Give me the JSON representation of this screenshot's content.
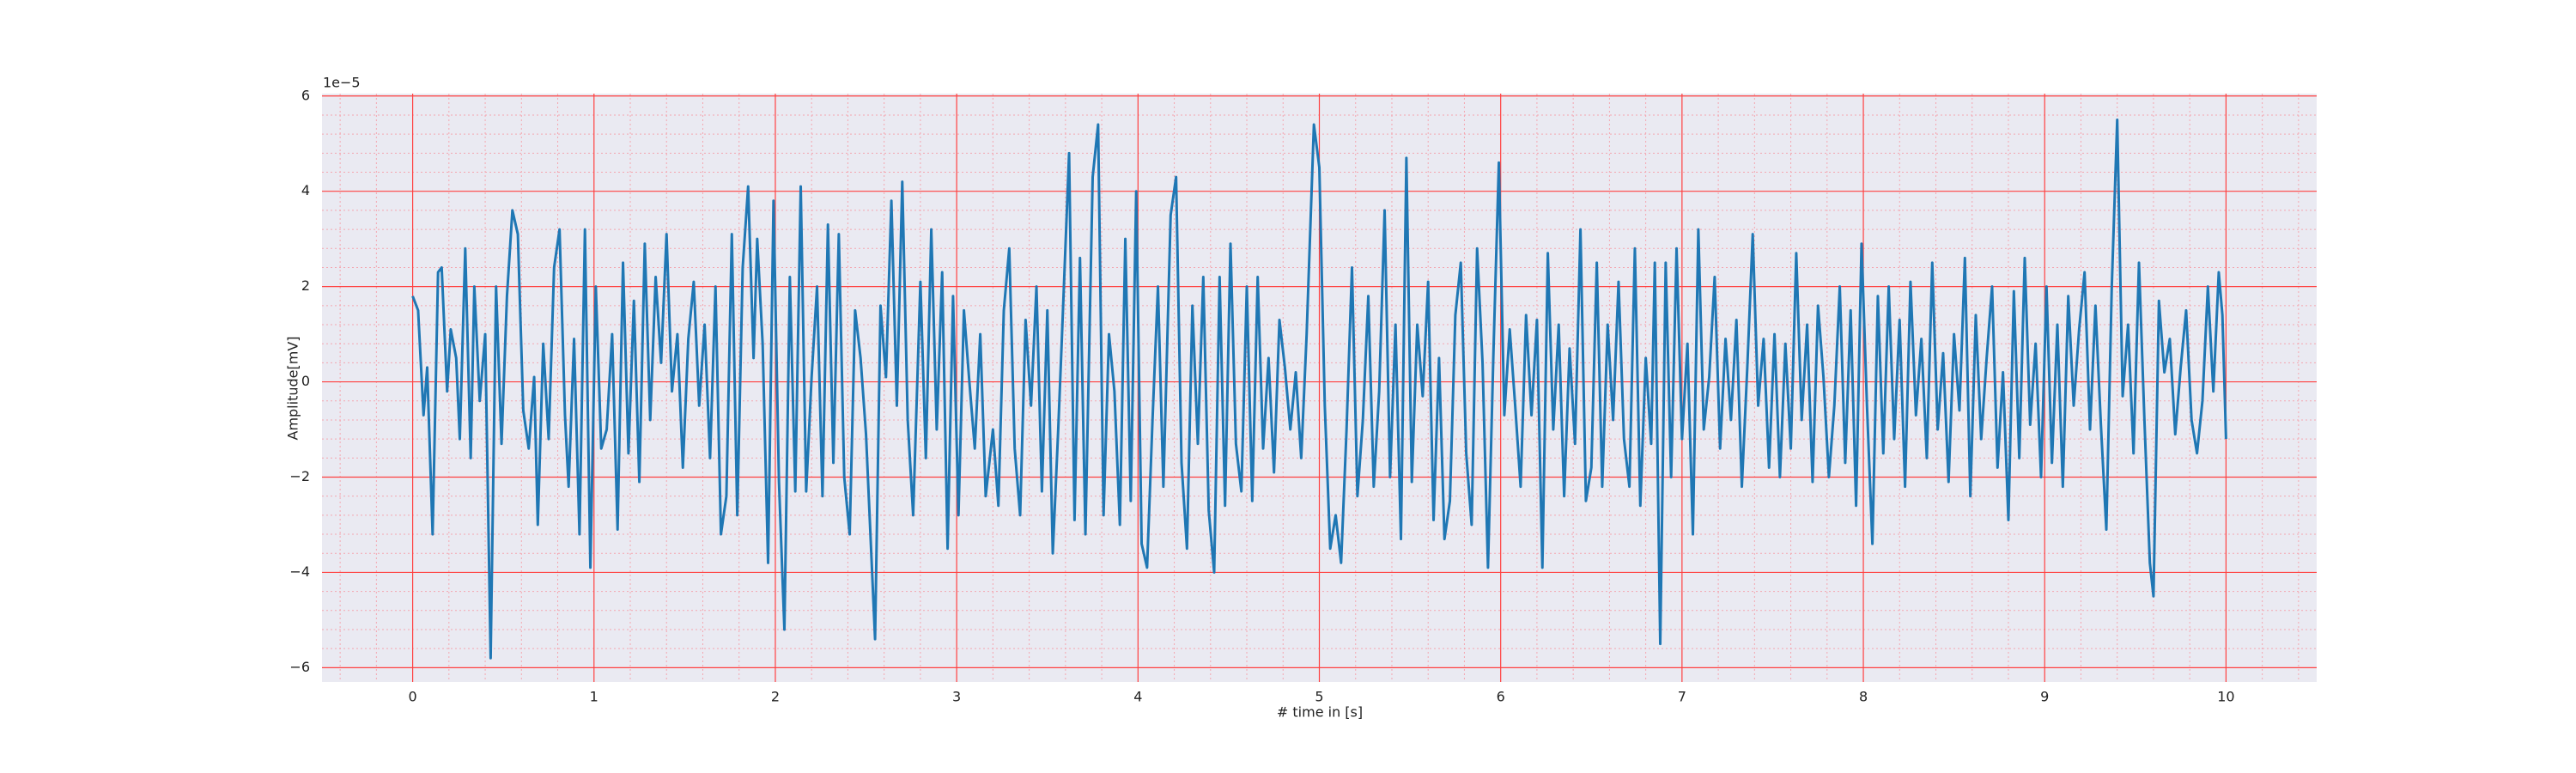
{
  "chart_data": {
    "type": "line",
    "xlabel": "# time in [s]",
    "ylabel": "Amplitude[mV]",
    "y_offset_label": "1e−5",
    "xlim": [
      -0.5,
      10.5
    ],
    "ylim": [
      -6.3,
      6.05
    ],
    "xticks": [
      0,
      1,
      2,
      3,
      4,
      5,
      6,
      7,
      8,
      9,
      10
    ],
    "yticks": [
      {
        "value": -6,
        "label": "−6"
      },
      {
        "value": -4,
        "label": "−4"
      },
      {
        "value": -2,
        "label": "−2"
      },
      0,
      2,
      4,
      6
    ],
    "grid": true,
    "minor_grid": true,
    "minor_divisions": 5,
    "grid_color": "#ff4040",
    "minor_grid_color": "#f4a6b0",
    "background": "#eaeaf2",
    "series": [
      {
        "color": "#1f77b4",
        "x": [
          0,
          0.03,
          0.06,
          0.08,
          0.11,
          0.14,
          0.16,
          0.19,
          0.21,
          0.24,
          0.26,
          0.29,
          0.32,
          0.34,
          0.37,
          0.4,
          0.43,
          0.46,
          0.49,
          0.52,
          0.55,
          0.58,
          0.61,
          0.64,
          0.67,
          0.69,
          0.72,
          0.75,
          0.78,
          0.81,
          0.84,
          0.86,
          0.89,
          0.92,
          0.95,
          0.98,
          1.01,
          1.04,
          1.07,
          1.1,
          1.13,
          1.16,
          1.19,
          1.22,
          1.25,
          1.28,
          1.31,
          1.34,
          1.37,
          1.4,
          1.43,
          1.46,
          1.49,
          1.52,
          1.55,
          1.58,
          1.61,
          1.64,
          1.67,
          1.7,
          1.73,
          1.76,
          1.79,
          1.82,
          1.85,
          1.88,
          1.9,
          1.93,
          1.96,
          1.99,
          2.02,
          2.05,
          2.08,
          2.11,
          2.14,
          2.17,
          2.2,
          2.23,
          2.26,
          2.29,
          2.32,
          2.35,
          2.38,
          2.41,
          2.44,
          2.47,
          2.5,
          2.55,
          2.58,
          2.61,
          2.64,
          2.67,
          2.7,
          2.73,
          2.76,
          2.8,
          2.83,
          2.86,
          2.89,
          2.92,
          2.95,
          2.98,
          3.01,
          3.04,
          3.07,
          3.1,
          3.13,
          3.16,
          3.2,
          3.23,
          3.26,
          3.29,
          3.32,
          3.35,
          3.38,
          3.41,
          3.44,
          3.47,
          3.5,
          3.53,
          3.56,
          3.58,
          3.62,
          3.65,
          3.68,
          3.71,
          3.75,
          3.78,
          3.81,
          3.84,
          3.87,
          3.9,
          3.93,
          3.96,
          3.99,
          4.02,
          4.05,
          4.08,
          4.11,
          4.14,
          4.18,
          4.21,
          4.24,
          4.27,
          4.3,
          4.33,
          4.36,
          4.39,
          4.42,
          4.45,
          4.48,
          4.51,
          4.54,
          4.57,
          4.6,
          4.63,
          4.66,
          4.69,
          4.72,
          4.75,
          4.78,
          4.81,
          4.84,
          4.87,
          4.9,
          4.93,
          4.97,
          5,
          5.03,
          5.06,
          5.09,
          5.12,
          5.15,
          5.18,
          5.21,
          5.24,
          5.27,
          5.3,
          5.33,
          5.36,
          5.39,
          5.42,
          5.45,
          5.48,
          5.51,
          5.54,
          5.57,
          5.6,
          5.63,
          5.66,
          5.69,
          5.72,
          5.75,
          5.78,
          5.81,
          5.84,
          5.87,
          5.9,
          5.93,
          5.96,
          5.99,
          6.02,
          6.05,
          6.08,
          6.11,
          6.14,
          6.17,
          6.2,
          6.23,
          6.26,
          6.29,
          6.32,
          6.35,
          6.38,
          6.41,
          6.44,
          6.47,
          6.5,
          6.53,
          6.56,
          6.59,
          6.62,
          6.65,
          6.68,
          6.71,
          6.74,
          6.77,
          6.8,
          6.83,
          6.85,
          6.88,
          6.91,
          6.94,
          6.97,
          7,
          7.03,
          7.06,
          7.09,
          7.12,
          7.15,
          7.18,
          7.21,
          7.24,
          7.27,
          7.3,
          7.33,
          7.36,
          7.39,
          7.42,
          7.45,
          7.48,
          7.51,
          7.54,
          7.57,
          7.6,
          7.63,
          7.66,
          7.69,
          7.72,
          7.75,
          7.78,
          7.81,
          7.84,
          7.87,
          7.9,
          7.93,
          7.96,
          7.99,
          8.02,
          8.05,
          8.08,
          8.11,
          8.14,
          8.17,
          8.2,
          8.23,
          8.26,
          8.29,
          8.32,
          8.35,
          8.38,
          8.41,
          8.44,
          8.47,
          8.5,
          8.53,
          8.56,
          8.59,
          8.62,
          8.65,
          8.68,
          8.71,
          8.74,
          8.77,
          8.8,
          8.83,
          8.86,
          8.89,
          8.92,
          8.95,
          8.98,
          9.01,
          9.04,
          9.07,
          9.1,
          9.13,
          9.16,
          9.19,
          9.22,
          9.25,
          9.28,
          9.31,
          9.34,
          9.37,
          9.4,
          9.43,
          9.46,
          9.49,
          9.52,
          9.55,
          9.58,
          9.6,
          9.63,
          9.66,
          9.69,
          9.72,
          9.75,
          9.78,
          9.81,
          9.84,
          9.87,
          9.9,
          9.93,
          9.96,
          9.98,
          10
        ],
        "values": [
          1.8,
          1.5,
          -0.7,
          0.3,
          -3.2,
          2.3,
          2.4,
          -0.2,
          1.1,
          0.5,
          -1.2,
          2.8,
          -1.6,
          2,
          -0.4,
          1,
          -5.8,
          2,
          -1.3,
          1.8,
          3.6,
          3.1,
          -0.6,
          -1.4,
          0.1,
          -3,
          0.8,
          -1.2,
          2.4,
          3.2,
          -0.7,
          -2.2,
          0.9,
          -3.2,
          3.2,
          -3.9,
          2,
          -1.4,
          -1,
          1,
          -3.1,
          2.5,
          -1.5,
          1.7,
          -2.1,
          2.9,
          -0.8,
          2.2,
          0.4,
          3.1,
          -0.2,
          1,
          -1.8,
          0.9,
          2.1,
          -0.5,
          1.2,
          -1.6,
          2,
          -3.2,
          -2.4,
          3.1,
          -2.8,
          2.4,
          4.1,
          0.5,
          3,
          0.8,
          -3.8,
          3.8,
          -2.1,
          -5.2,
          2.2,
          -2.3,
          4.1,
          -2.3,
          0.1,
          2,
          -2.4,
          3.3,
          -1.7,
          3.1,
          -2,
          -3.2,
          1.5,
          0.5,
          -1.1,
          -5.4,
          1.6,
          0.1,
          3.8,
          -0.5,
          4.2,
          -0.8,
          -2.8,
          2.1,
          -1.6,
          3.2,
          -1,
          2.3,
          -3.5,
          1.8,
          -2.8,
          1.5,
          0,
          -1.4,
          1,
          -2.4,
          -1,
          -2.6,
          1.5,
          2.8,
          -1.4,
          -2.8,
          1.3,
          -0.5,
          2,
          -2.3,
          1.5,
          -3.6,
          -1,
          0.9,
          4.8,
          -2.9,
          2.6,
          -3.2,
          4.3,
          5.4,
          -2.8,
          1,
          -0.2,
          -3,
          3,
          -2.5,
          4,
          -3.4,
          -3.9,
          -0.8,
          2,
          -2.2,
          3.5,
          4.3,
          -1.7,
          -3.5,
          1.6,
          -1.3,
          2.2,
          -2.7,
          -4,
          2.2,
          -2.6,
          2.9,
          -1.3,
          -2.3,
          2,
          -2.5,
          2.2,
          -1.4,
          0.5,
          -1.9,
          1.3,
          0.3,
          -1,
          0.2,
          -1.6,
          1,
          5.4,
          4.5,
          -0.5,
          -3.5,
          -2.8,
          -3.8,
          -1,
          2.4,
          -2.4,
          -0.8,
          1.8,
          -2.2,
          -0.2,
          3.6,
          -2,
          1.2,
          -3.3,
          4.7,
          -2.1,
          1.2,
          -0.3,
          2.1,
          -2.9,
          0.5,
          -3.3,
          -2.5,
          1.4,
          2.5,
          -1.5,
          -3,
          2.8,
          0.4,
          -3.9,
          0.6,
          4.6,
          -0.7,
          1.1,
          -0.5,
          -2.2,
          1.4,
          -0.7,
          1.3,
          -3.9,
          2.7,
          -1,
          1.2,
          -2.4,
          0.7,
          -1.3,
          3.2,
          -2.5,
          -1.8,
          2.5,
          -2.2,
          1.2,
          -0.8,
          2.1,
          -1.2,
          -2.2,
          2.8,
          -2.6,
          0.5,
          -1.3,
          2.5,
          -5.5,
          2.5,
          -2,
          2.8,
          -1.2,
          0.8,
          -3.2,
          3.2,
          -1,
          0.1,
          2.2,
          -1.4,
          0.9,
          -0.8,
          1.3,
          -2.2,
          0.3,
          3.1,
          -0.5,
          0.9,
          -1.8,
          1,
          -2,
          0.8,
          -1.4,
          2.7,
          -0.8,
          1.2,
          -2.1,
          1.6,
          0.1,
          -2,
          -0.5,
          2,
          -1.7,
          1.5,
          -2.6,
          2.9,
          -0.5,
          -3.4,
          1.8,
          -1.5,
          2,
          -1.2,
          1.3,
          -2.2,
          2.1,
          -0.7,
          0.9,
          -1.6,
          2.5,
          -1,
          0.6,
          -2.1,
          1,
          -0.6,
          2.6,
          -2.4,
          1.4,
          -1.2,
          0.5,
          2,
          -1.8,
          0.2,
          -2.9,
          1.9,
          -1.6,
          2.6,
          -0.9,
          0.8,
          -2,
          2,
          -1.7,
          1.2,
          -2.2,
          1.8,
          -0.5,
          1.1,
          2.3,
          -1,
          1.6,
          -0.9,
          -3.1,
          2,
          5.5,
          -0.3,
          1.2,
          -1.5,
          2.5,
          -0.8,
          -3.8,
          -4.5,
          1.7,
          0.2,
          0.9,
          -1.1,
          0.3,
          1.5,
          -0.8,
          -1.5,
          -0.4,
          2,
          -0.2,
          2.3,
          1.4,
          -1.2
        ]
      }
    ]
  }
}
